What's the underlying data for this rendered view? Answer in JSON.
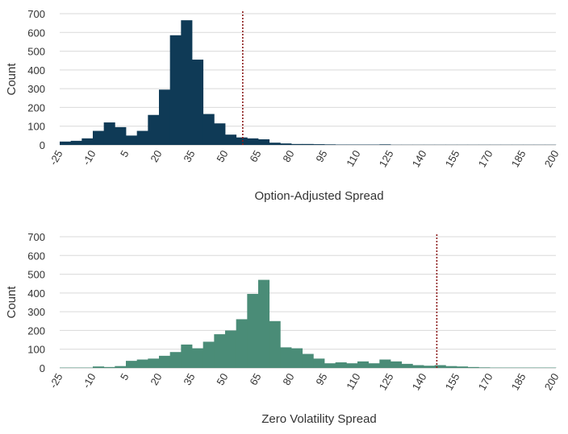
{
  "chart_data": [
    {
      "type": "bar",
      "xlabel": "Option-Adjusted Spread",
      "ylabel": "Count",
      "ylim": [
        0,
        700
      ],
      "yticks": [
        0,
        100,
        200,
        300,
        400,
        500,
        600,
        700
      ],
      "xlim": [
        -25,
        200
      ],
      "xticks": [
        -25,
        -10,
        5,
        20,
        35,
        50,
        65,
        80,
        95,
        110,
        125,
        140,
        155,
        170,
        185,
        200
      ],
      "bin_width": 5,
      "bin_starts": [
        -25,
        -20,
        -15,
        -10,
        -5,
        0,
        5,
        10,
        15,
        20,
        25,
        30,
        35,
        40,
        45,
        50,
        55,
        60,
        65,
        70,
        75,
        80,
        85,
        90,
        95,
        100,
        105,
        110,
        115,
        120,
        125,
        130,
        135,
        140,
        145,
        150,
        155,
        160,
        165,
        170,
        175,
        180,
        185,
        190,
        195
      ],
      "values": [
        18,
        22,
        35,
        75,
        120,
        95,
        50,
        75,
        160,
        295,
        585,
        665,
        455,
        165,
        115,
        55,
        40,
        35,
        30,
        12,
        8,
        5,
        5,
        4,
        3,
        2,
        2,
        2,
        2,
        3,
        1,
        1,
        1,
        1,
        1,
        1,
        1,
        1,
        1,
        1,
        1,
        1,
        1,
        1,
        1
      ],
      "reference_line": 58,
      "grid": true,
      "color": "#0f3a56",
      "ref_color": "#8b1a1a"
    },
    {
      "type": "bar",
      "xlabel": "Zero Volatility Spread",
      "ylabel": "Count",
      "ylim": [
        0,
        700
      ],
      "yticks": [
        0,
        100,
        200,
        300,
        400,
        500,
        600,
        700
      ],
      "xlim": [
        -25,
        200
      ],
      "xticks": [
        -25,
        -10,
        5,
        20,
        35,
        50,
        65,
        80,
        95,
        110,
        125,
        140,
        155,
        170,
        185,
        200
      ],
      "bin_width": 5,
      "bin_starts": [
        -25,
        -20,
        -15,
        -10,
        -5,
        0,
        5,
        10,
        15,
        20,
        25,
        30,
        35,
        40,
        45,
        50,
        55,
        60,
        65,
        70,
        75,
        80,
        85,
        90,
        95,
        100,
        105,
        110,
        115,
        120,
        125,
        130,
        135,
        140,
        145,
        150,
        155,
        160,
        165,
        170,
        175,
        180,
        185,
        190,
        195
      ],
      "values": [
        2,
        2,
        2,
        8,
        5,
        10,
        38,
        45,
        50,
        65,
        85,
        125,
        105,
        140,
        180,
        200,
        260,
        395,
        470,
        250,
        110,
        105,
        75,
        50,
        25,
        30,
        25,
        35,
        25,
        45,
        35,
        22,
        15,
        12,
        15,
        10,
        8,
        5,
        3,
        2,
        2,
        2,
        2,
        2,
        2
      ],
      "reference_line": 146,
      "grid": true,
      "color": "#4a8c77",
      "ref_color": "#8b1a1a"
    }
  ]
}
